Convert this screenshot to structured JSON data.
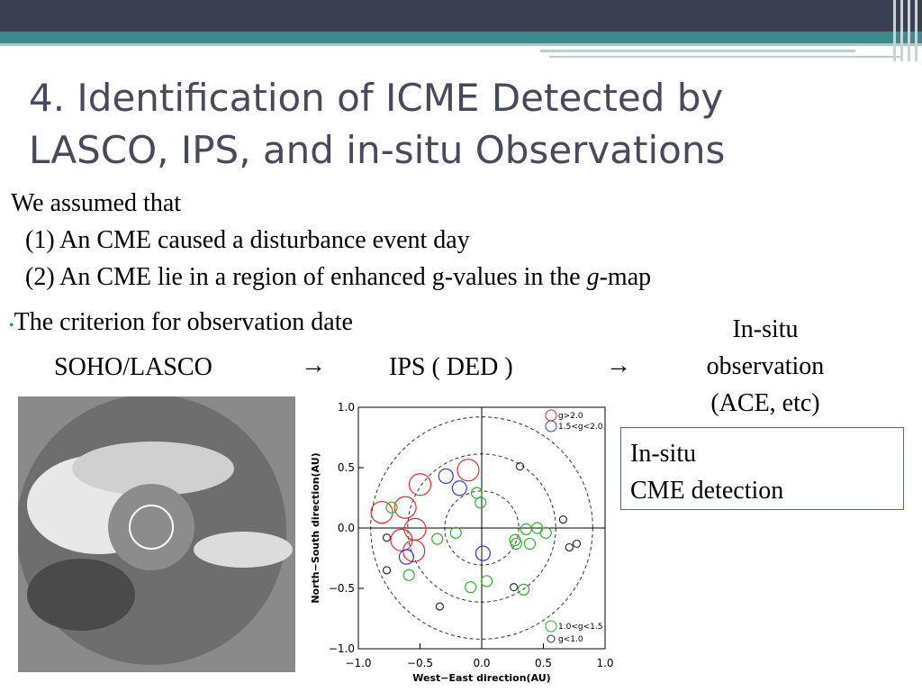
{
  "header": {
    "title_lines": [
      "4. Identification of ICME Detected by",
      "LASCO, IPS, and in-situ Observations"
    ]
  },
  "body": {
    "intro": "We assumed that",
    "item1": "(1) An CME caused a disturbance event day",
    "item2_parts": [
      "(2) An CME lie in a region of enhanced g-values in the ",
      "g",
      "-map"
    ],
    "bullet": "The criterion for observation date"
  },
  "flow": {
    "steps": [
      "SOHO/LASCO",
      "IPS ( DED )"
    ],
    "arrows": [
      "→",
      "→"
    ],
    "last_step_lines": [
      "In-situ",
      "observation",
      "(ACE, etc)"
    ]
  },
  "box": {
    "lines": [
      "In-situ",
      "CME detection"
    ]
  },
  "plot": {
    "type": "scatter",
    "xlabel": "West−East direction(AU)",
    "ylabel": "North−South direction(AU)",
    "xlim": [
      -1.0,
      1.0
    ],
    "ylim": [
      -1.0,
      1.0
    ],
    "xticks": [
      {
        "value": -1.0,
        "label": "−1.0"
      },
      {
        "value": -0.5,
        "label": "−0.5"
      },
      {
        "value": 0,
        "label": "0.0"
      },
      {
        "value": 0.5,
        "label": "0.5"
      },
      {
        "value": 1.0,
        "label": "1.0"
      }
    ],
    "yticks": [
      {
        "value": -1.0,
        "label": "−1.0"
      },
      {
        "value": -0.5,
        "label": "−0.5"
      },
      {
        "value": 0,
        "label": "0.0"
      },
      {
        "value": 0.5,
        "label": "0.5"
      },
      {
        "value": 1.0,
        "label": "1.0"
      }
    ],
    "series": [
      {
        "name": "g>2.0",
        "color": "#e03030",
        "x": [
          -0.81,
          -0.62,
          -0.5,
          -0.11,
          -0.54,
          -0.65,
          -0.55
        ],
        "y": [
          0.13,
          0.17,
          0.36,
          0.48,
          -0.01,
          -0.1,
          -0.19
        ]
      },
      {
        "name": "1.5<g<2.0",
        "color": "#3040d0",
        "x": [
          -0.29,
          -0.18,
          0.01,
          -0.61
        ],
        "y": [
          0.43,
          0.33,
          -0.21,
          -0.24
        ]
      },
      {
        "name": "1.0<g<1.5",
        "color": "#30b030",
        "x": [
          -0.04,
          -0.01,
          -0.73,
          -0.36,
          -0.21,
          0.36,
          0.45,
          0.52,
          0.39,
          0.28,
          0.27,
          0.04,
          -0.09,
          -0.59,
          0.34
        ],
        "y": [
          0.29,
          0.21,
          0.17,
          -0.09,
          -0.04,
          -0.01,
          0,
          -0.04,
          -0.13,
          -0.13,
          -0.1,
          -0.44,
          -0.49,
          -0.39,
          -0.51
        ]
      },
      {
        "name": "g<1.0",
        "color": "#303030",
        "x": [
          0.31,
          0.66,
          0.77,
          0.71,
          -0.77,
          -0.77,
          0.26,
          -0.34
        ],
        "y": [
          0.51,
          0.07,
          -0.13,
          -0.16,
          -0.08,
          -0.35,
          -0.49,
          -0.65
        ]
      }
    ]
  }
}
